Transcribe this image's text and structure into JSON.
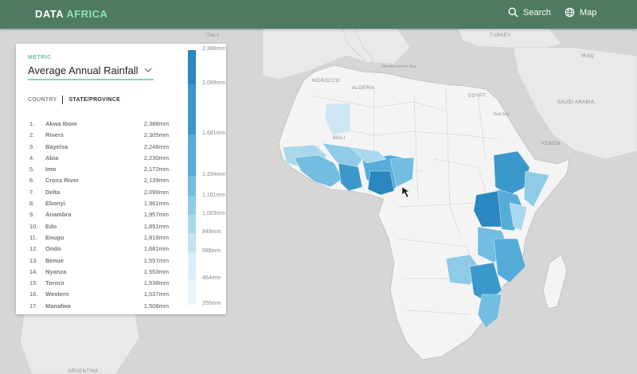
{
  "header": {
    "brand_part1": "DATA",
    "brand_part2": "AFRICA",
    "search_label": "Search",
    "map_label": "Map",
    "search_icon": "search-icon",
    "map_icon": "globe-icon"
  },
  "panel": {
    "metric_label": "METRIC",
    "metric_value": "Average Annual Rainfall",
    "tab_country": "COUNTRY",
    "tab_state": "STATE/PROVINCE",
    "rankings": [
      {
        "rank": "1.",
        "name": "Akwa Ibom",
        "value": "2,388mm"
      },
      {
        "rank": "2.",
        "name": "Rivers",
        "value": "2,305mm"
      },
      {
        "rank": "3.",
        "name": "Bayelsa",
        "value": "2,248mm"
      },
      {
        "rank": "4.",
        "name": "Abia",
        "value": "2,230mm"
      },
      {
        "rank": "5.",
        "name": "Imo",
        "value": "2,172mm"
      },
      {
        "rank": "6.",
        "name": "Cross River",
        "value": "2,139mm"
      },
      {
        "rank": "7.",
        "name": "Delta",
        "value": "2,099mm"
      },
      {
        "rank": "8.",
        "name": "Ebonyi",
        "value": "1,961mm"
      },
      {
        "rank": "9.",
        "name": "Anambra",
        "value": "1,957mm"
      },
      {
        "rank": "10.",
        "name": "Edo",
        "value": "1,851mm"
      },
      {
        "rank": "11.",
        "name": "Enugu",
        "value": "1,819mm"
      },
      {
        "rank": "12.",
        "name": "Ondo",
        "value": "1,681mm"
      },
      {
        "rank": "13.",
        "name": "Benue",
        "value": "1,557mm"
      },
      {
        "rank": "14.",
        "name": "Nyanza",
        "value": "1,553mm"
      },
      {
        "rank": "15.",
        "name": "Tororo",
        "value": "1,538mm"
      },
      {
        "rank": "16.",
        "name": "Western",
        "value": "1,537mm"
      },
      {
        "rank": "17.",
        "name": "Manafwa",
        "value": "1,508mm"
      }
    ],
    "legend": {
      "ticks": [
        "2,388mm",
        "2,099mm",
        "1,681mm",
        "1,334mm",
        "1,161mm",
        "1,003mm",
        "849mm",
        "688mm",
        "464mm",
        "250mm"
      ],
      "colors": [
        "#2a87bf",
        "#3b98cb",
        "#56acd8",
        "#72bde0",
        "#8fcbe6",
        "#a9d8ec",
        "#c2e3f1",
        "#d9eef6",
        "#eaf5fa"
      ]
    }
  },
  "map_labels": {
    "italy": "ITALY",
    "turkey": "TURKEY",
    "morocco": "MOROCCO",
    "algeria": "ALGERIA",
    "egypt": "EGYPT",
    "mali": "MALI",
    "yemen": "YEMEN",
    "saudi": "SAUDI ARABIA",
    "iraq": "IRAQ",
    "argentina": "ARGENTINA",
    "mediterranean": "Mediterranean Sea",
    "red_sea": "Red Sea"
  },
  "colors": {
    "header": "#4e7b62",
    "accent": "#8fe3b2",
    "water": "#d6d6d6",
    "land": "#f4f4f4",
    "rain_high": "#2a87bf",
    "rain_low": "#cde6f2"
  }
}
